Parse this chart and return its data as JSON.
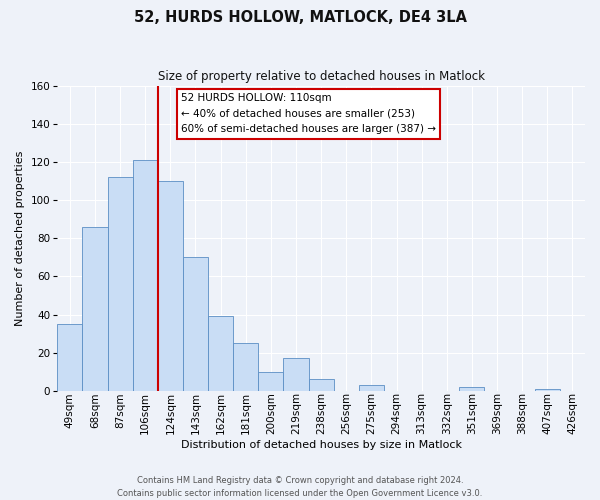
{
  "title": "52, HURDS HOLLOW, MATLOCK, DE4 3LA",
  "subtitle": "Size of property relative to detached houses in Matlock",
  "xlabel": "Distribution of detached houses by size in Matlock",
  "ylabel": "Number of detached properties",
  "bin_labels": [
    "49sqm",
    "68sqm",
    "87sqm",
    "106sqm",
    "124sqm",
    "143sqm",
    "162sqm",
    "181sqm",
    "200sqm",
    "219sqm",
    "238sqm",
    "256sqm",
    "275sqm",
    "294sqm",
    "313sqm",
    "332sqm",
    "351sqm",
    "369sqm",
    "388sqm",
    "407sqm",
    "426sqm"
  ],
  "bar_values": [
    35,
    86,
    112,
    121,
    110,
    70,
    39,
    25,
    10,
    17,
    6,
    0,
    3,
    0,
    0,
    0,
    2,
    0,
    0,
    1,
    0
  ],
  "bar_color": "#c9ddf5",
  "bar_edge_color": "#5b8ec4",
  "vline_x": 3.5,
  "vline_color": "#cc0000",
  "ylim": [
    0,
    160
  ],
  "yticks": [
    0,
    20,
    40,
    60,
    80,
    100,
    120,
    140,
    160
  ],
  "annotation_line1": "52 HURDS HOLLOW: 110sqm",
  "annotation_line2": "← 40% of detached houses are smaller (253)",
  "annotation_line3": "60% of semi-detached houses are larger (387) →",
  "annotation_box_color": "#ffffff",
  "annotation_box_edge": "#cc0000",
  "footer_line1": "Contains HM Land Registry data © Crown copyright and database right 2024.",
  "footer_line2": "Contains public sector information licensed under the Open Government Licence v3.0.",
  "background_color": "#eef2f9",
  "grid_color": "#ffffff",
  "title_fontsize": 10.5,
  "subtitle_fontsize": 8.5,
  "axis_label_fontsize": 8,
  "tick_fontsize": 7.5,
  "annotation_fontsize": 7.5,
  "footer_fontsize": 6
}
